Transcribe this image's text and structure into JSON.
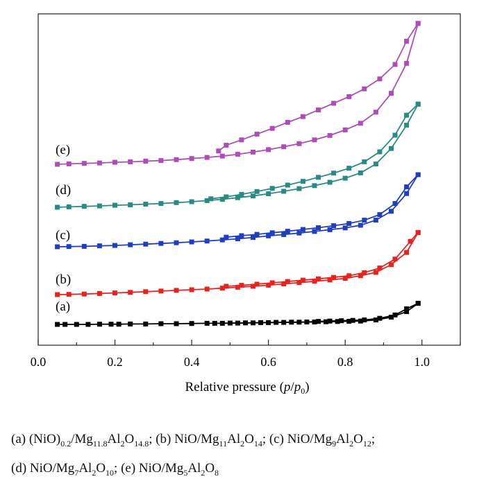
{
  "chart_data": {
    "type": "line",
    "xlabel": "Relative pressure (p/p0)",
    "xlim": [
      0.0,
      1.1
    ],
    "xticks": [
      "0.0",
      "0.2",
      "0.4",
      "0.6",
      "0.8",
      "1.0"
    ],
    "ylabel": "",
    "y_tick_labels_shown": false,
    "grid": false,
    "legend": "none",
    "series": [
      {
        "label": "(a)",
        "color": "#000000",
        "adsorption": [
          [
            0.05,
            0
          ],
          [
            0.07,
            0
          ],
          [
            0.1,
            0
          ],
          [
            0.13,
            0
          ],
          [
            0.16,
            0.02
          ],
          [
            0.19,
            0.02
          ],
          [
            0.21,
            0.02
          ],
          [
            0.24,
            0.04
          ],
          [
            0.28,
            0.04
          ],
          [
            0.32,
            0.06
          ],
          [
            0.36,
            0.06
          ],
          [
            0.4,
            0.08
          ],
          [
            0.44,
            0.1
          ],
          [
            0.48,
            0.1
          ],
          [
            0.52,
            0.12
          ],
          [
            0.56,
            0.14
          ],
          [
            0.6,
            0.16
          ],
          [
            0.64,
            0.18
          ],
          [
            0.68,
            0.2
          ],
          [
            0.72,
            0.22
          ],
          [
            0.75,
            0.24
          ],
          [
            0.78,
            0.26
          ],
          [
            0.81,
            0.28
          ],
          [
            0.84,
            0.3
          ],
          [
            0.88,
            0.4
          ],
          [
            0.92,
            0.65
          ],
          [
            0.96,
            1.15
          ],
          [
            0.99,
            1.9
          ]
        ],
        "desorption": [
          [
            0.99,
            1.9
          ],
          [
            0.96,
            1.4
          ],
          [
            0.93,
            0.85
          ],
          [
            0.89,
            0.55
          ],
          [
            0.85,
            0.4
          ],
          [
            0.82,
            0.36
          ],
          [
            0.79,
            0.33
          ],
          [
            0.76,
            0.3
          ],
          [
            0.73,
            0.27
          ],
          [
            0.7,
            0.22
          ],
          [
            0.66,
            0.2
          ],
          [
            0.62,
            0.18
          ],
          [
            0.58,
            0.16
          ],
          [
            0.54,
            0.14
          ],
          [
            0.5,
            0.12
          ],
          [
            0.46,
            0.1
          ]
        ]
      },
      {
        "label": "(b)",
        "color": "#e8231f",
        "adsorption": [
          [
            0.05,
            0
          ],
          [
            0.08,
            0.02
          ],
          [
            0.12,
            0.05
          ],
          [
            0.16,
            0.1
          ],
          [
            0.2,
            0.15
          ],
          [
            0.24,
            0.2
          ],
          [
            0.28,
            0.26
          ],
          [
            0.32,
            0.32
          ],
          [
            0.36,
            0.38
          ],
          [
            0.4,
            0.44
          ],
          [
            0.44,
            0.5
          ],
          [
            0.48,
            0.58
          ],
          [
            0.52,
            0.66
          ],
          [
            0.56,
            0.75
          ],
          [
            0.6,
            0.85
          ],
          [
            0.64,
            0.96
          ],
          [
            0.68,
            1.08
          ],
          [
            0.72,
            1.2
          ],
          [
            0.76,
            1.32
          ],
          [
            0.8,
            1.46
          ],
          [
            0.84,
            1.7
          ],
          [
            0.88,
            2.0
          ],
          [
            0.92,
            2.7
          ],
          [
            0.96,
            3.8
          ],
          [
            0.99,
            5.6
          ]
        ],
        "desorption": [
          [
            0.99,
            5.6
          ],
          [
            0.97,
            4.8
          ],
          [
            0.93,
            3.2
          ],
          [
            0.89,
            2.4
          ],
          [
            0.85,
            1.98
          ],
          [
            0.81,
            1.7
          ],
          [
            0.77,
            1.55
          ],
          [
            0.73,
            1.42
          ],
          [
            0.69,
            1.3
          ],
          [
            0.65,
            1.18
          ],
          [
            0.61,
            1.06
          ],
          [
            0.57,
            0.94
          ],
          [
            0.53,
            0.84
          ],
          [
            0.49,
            0.75
          ]
        ]
      },
      {
        "label": "(c)",
        "color": "#1f3fbf",
        "adsorption": [
          [
            0.05,
            0
          ],
          [
            0.08,
            0.02
          ],
          [
            0.12,
            0.04
          ],
          [
            0.16,
            0.08
          ],
          [
            0.2,
            0.12
          ],
          [
            0.24,
            0.18
          ],
          [
            0.28,
            0.24
          ],
          [
            0.32,
            0.3
          ],
          [
            0.36,
            0.36
          ],
          [
            0.4,
            0.44
          ],
          [
            0.44,
            0.52
          ],
          [
            0.48,
            0.62
          ],
          [
            0.52,
            0.72
          ],
          [
            0.56,
            0.84
          ],
          [
            0.6,
            0.98
          ],
          [
            0.64,
            1.1
          ],
          [
            0.68,
            1.24
          ],
          [
            0.72,
            1.38
          ],
          [
            0.76,
            1.54
          ],
          [
            0.8,
            1.7
          ],
          [
            0.84,
            1.94
          ],
          [
            0.88,
            2.4
          ],
          [
            0.92,
            3.2
          ],
          [
            0.96,
            4.8
          ],
          [
            0.99,
            6.5
          ]
        ],
        "desorption": [
          [
            0.99,
            6.5
          ],
          [
            0.96,
            5.4
          ],
          [
            0.93,
            3.9
          ],
          [
            0.89,
            2.9
          ],
          [
            0.85,
            2.4
          ],
          [
            0.81,
            2.1
          ],
          [
            0.77,
            1.9
          ],
          [
            0.73,
            1.72
          ],
          [
            0.69,
            1.56
          ],
          [
            0.65,
            1.4
          ],
          [
            0.61,
            1.26
          ],
          [
            0.57,
            1.12
          ],
          [
            0.53,
            1.0
          ],
          [
            0.49,
            0.86
          ]
        ]
      },
      {
        "label": "(d)",
        "color": "#2a8a84",
        "adsorption": [
          [
            0.05,
            0
          ],
          [
            0.08,
            0.04
          ],
          [
            0.12,
            0.08
          ],
          [
            0.16,
            0.12
          ],
          [
            0.2,
            0.18
          ],
          [
            0.24,
            0.22
          ],
          [
            0.28,
            0.28
          ],
          [
            0.32,
            0.34
          ],
          [
            0.36,
            0.42
          ],
          [
            0.4,
            0.5
          ],
          [
            0.44,
            0.6
          ],
          [
            0.48,
            0.72
          ],
          [
            0.52,
            0.86
          ],
          [
            0.56,
            1.02
          ],
          [
            0.6,
            1.22
          ],
          [
            0.64,
            1.44
          ],
          [
            0.68,
            1.68
          ],
          [
            0.72,
            1.95
          ],
          [
            0.76,
            2.25
          ],
          [
            0.8,
            2.62
          ],
          [
            0.84,
            3.1
          ],
          [
            0.88,
            3.9
          ],
          [
            0.92,
            5.3
          ],
          [
            0.96,
            7.4
          ],
          [
            0.99,
            9.3
          ]
        ],
        "desorption": [
          [
            0.99,
            9.3
          ],
          [
            0.96,
            8.3
          ],
          [
            0.93,
            6.5
          ],
          [
            0.89,
            5.0
          ],
          [
            0.85,
            4.1
          ],
          [
            0.81,
            3.52
          ],
          [
            0.77,
            3.08
          ],
          [
            0.73,
            2.7
          ],
          [
            0.69,
            2.34
          ],
          [
            0.65,
            2.0
          ],
          [
            0.61,
            1.7
          ],
          [
            0.57,
            1.42
          ],
          [
            0.53,
            1.16
          ],
          [
            0.49,
            0.94
          ],
          [
            0.45,
            0.76
          ]
        ]
      },
      {
        "label": "(e)",
        "color": "#b04cb8",
        "adsorption": [
          [
            0.05,
            0
          ],
          [
            0.08,
            0.04
          ],
          [
            0.12,
            0.08
          ],
          [
            0.16,
            0.12
          ],
          [
            0.2,
            0.18
          ],
          [
            0.24,
            0.22
          ],
          [
            0.28,
            0.28
          ],
          [
            0.32,
            0.34
          ],
          [
            0.36,
            0.42
          ],
          [
            0.4,
            0.52
          ],
          [
            0.44,
            0.62
          ],
          [
            0.48,
            0.74
          ],
          [
            0.52,
            0.9
          ],
          [
            0.56,
            1.1
          ],
          [
            0.6,
            1.32
          ],
          [
            0.64,
            1.58
          ],
          [
            0.68,
            1.86
          ],
          [
            0.72,
            2.2
          ],
          [
            0.76,
            2.6
          ],
          [
            0.8,
            3.1
          ],
          [
            0.84,
            3.7
          ],
          [
            0.88,
            4.7
          ],
          [
            0.92,
            6.4
          ],
          [
            0.96,
            9.1
          ],
          [
            0.99,
            12.7
          ]
        ],
        "desorption": [
          [
            0.99,
            12.7
          ],
          [
            0.96,
            11.1
          ],
          [
            0.93,
            9.0
          ],
          [
            0.89,
            7.7
          ],
          [
            0.85,
            6.8
          ],
          [
            0.81,
            6.1
          ],
          [
            0.77,
            5.5
          ],
          [
            0.73,
            4.9
          ],
          [
            0.69,
            4.3
          ],
          [
            0.65,
            3.78
          ],
          [
            0.61,
            3.24
          ],
          [
            0.57,
            2.72
          ],
          [
            0.53,
            2.2
          ],
          [
            0.49,
            1.72
          ],
          [
            0.47,
            1.2
          ]
        ]
      }
    ]
  },
  "caption": {
    "line1": [
      {
        "t": "(a) (NiO)"
      },
      {
        "sub": "0.2"
      },
      {
        "t": "/Mg"
      },
      {
        "sub": "11.8"
      },
      {
        "t": "Al"
      },
      {
        "sub": "2"
      },
      {
        "t": "O"
      },
      {
        "sub": "14.8"
      },
      {
        "t": "; (b) NiO/Mg"
      },
      {
        "sub": "11"
      },
      {
        "t": "Al"
      },
      {
        "sub": "2"
      },
      {
        "t": "O"
      },
      {
        "sub": "14"
      },
      {
        "t": "; (c) NiO/Mg"
      },
      {
        "sub": "9"
      },
      {
        "t": "Al"
      },
      {
        "sub": "2"
      },
      {
        "t": "O"
      },
      {
        "sub": "12"
      },
      {
        "t": ";"
      }
    ],
    "line2": [
      {
        "t": "(d) NiO/Mg"
      },
      {
        "sub": "7"
      },
      {
        "t": "Al"
      },
      {
        "sub": "2"
      },
      {
        "t": "O"
      },
      {
        "sub": "10"
      },
      {
        "t": "; (e) NiO/Mg"
      },
      {
        "sub": "5"
      },
      {
        "t": "Al"
      },
      {
        "sub": "2"
      },
      {
        "t": "O"
      },
      {
        "sub": "8"
      }
    ]
  }
}
